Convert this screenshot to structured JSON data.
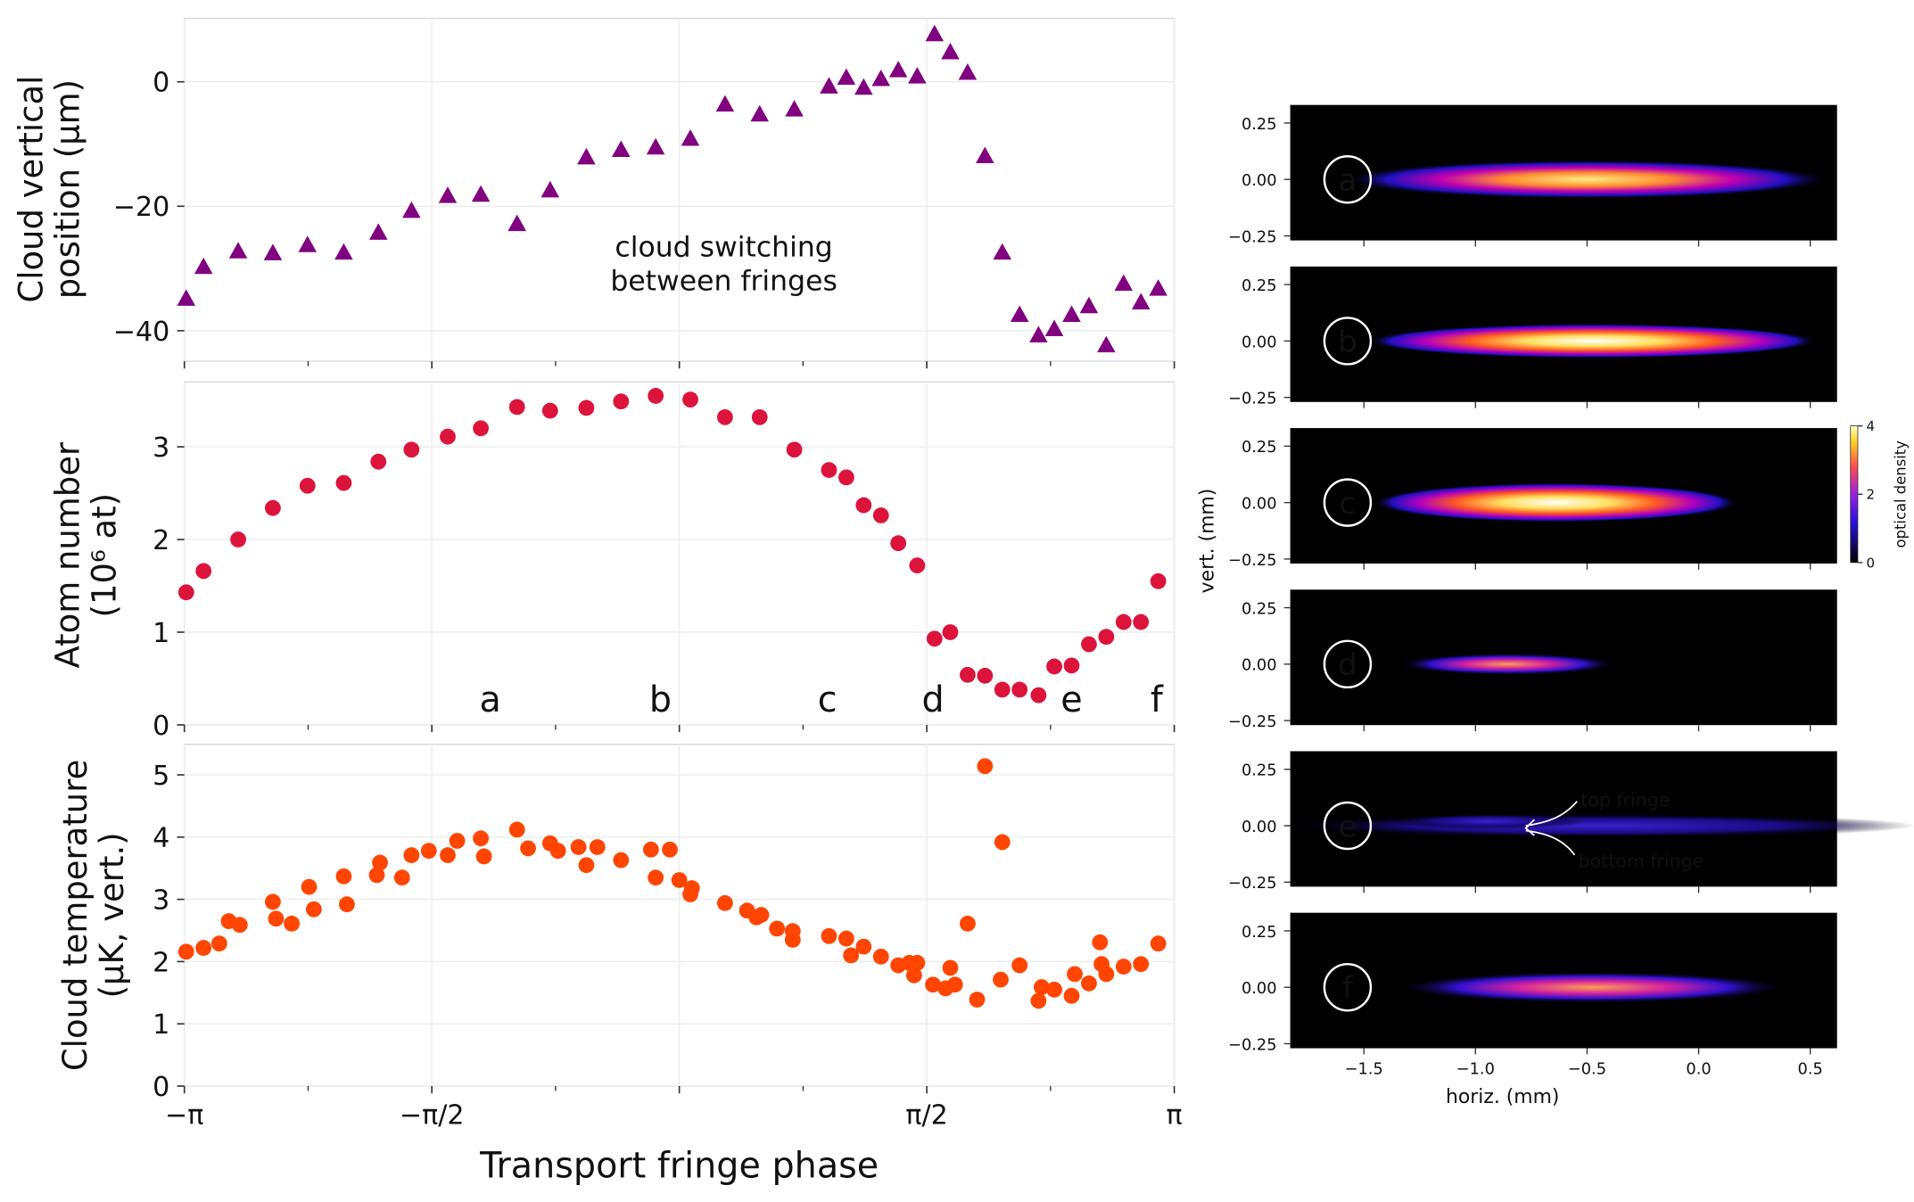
{
  "chart_data": [
    {
      "type": "scatter",
      "marker": "triangle",
      "color": "#800080",
      "ylabel": [
        "Cloud vertical",
        "position (μm)"
      ],
      "annotation": [
        "cloud switching",
        "between fringes"
      ],
      "x": [
        -3.13,
        -3.02,
        -2.8,
        -2.58,
        -2.36,
        -2.13,
        -1.91,
        -1.7,
        -1.47,
        -1.26,
        -1.03,
        -0.82,
        -0.59,
        -0.37,
        -0.15,
        0.07,
        0.29,
        0.51,
        0.73,
        0.95,
        1.06,
        1.17,
        1.28,
        1.39,
        1.51,
        1.62,
        1.72,
        1.83,
        1.94,
        2.05,
        2.16,
        2.28,
        2.38,
        2.49,
        2.6,
        2.71,
        2.82,
        2.93,
        3.04
      ],
      "values": [
        -34.9,
        -29.8,
        -27.3,
        -27.6,
        -26.3,
        -27.5,
        -24.3,
        -20.8,
        -18.4,
        -18.2,
        -22.9,
        -17.5,
        -12.2,
        -11.0,
        -10.6,
        -9.2,
        -3.7,
        -5.3,
        -4.5,
        -0.8,
        0.6,
        -1.0,
        0.4,
        1.8,
        0.8,
        7.6,
        4.7,
        1.4,
        -12.0,
        -27.5,
        -37.5,
        -40.8,
        -39.8,
        -37.5,
        -36.1,
        -42.4,
        -32.5,
        -35.5,
        -33.3
      ],
      "xlim": [
        -3.14159,
        3.14159
      ],
      "xticks": [
        -3.14159,
        -1.5708,
        0,
        1.5708,
        3.14159
      ],
      "ylim": [
        -44.9,
        10.2
      ],
      "yticks": [
        {
          "value": -40,
          "label": "−40"
        },
        {
          "value": -20,
          "label": "−20"
        },
        0
      ],
      "grid": true
    },
    {
      "type": "scatter",
      "marker": "circle",
      "color": "#dc143c",
      "ylabel": [
        "Atom number",
        "(10⁶ at)"
      ],
      "annotations": [
        {
          "text": "a",
          "x": -1.2
        },
        {
          "text": "b",
          "x": -0.12
        },
        {
          "text": "c",
          "x": 0.94
        },
        {
          "text": "d",
          "x": 1.61
        },
        {
          "text": "e",
          "x": 2.49
        },
        {
          "text": "f",
          "x": 3.03
        }
      ],
      "x": [
        -3.13,
        -3.02,
        -2.8,
        -2.58,
        -2.36,
        -2.13,
        -1.91,
        -1.7,
        -1.47,
        -1.26,
        -1.03,
        -0.82,
        -0.59,
        -0.37,
        -0.15,
        0.07,
        0.29,
        0.51,
        0.73,
        0.95,
        1.06,
        1.17,
        1.28,
        1.39,
        1.51,
        1.62,
        1.72,
        1.83,
        1.94,
        2.05,
        2.16,
        2.28,
        2.38,
        2.49,
        2.6,
        2.71,
        2.82,
        2.93,
        3.04
      ],
      "values": [
        1.43,
        1.66,
        2.0,
        2.34,
        2.58,
        2.61,
        2.84,
        2.97,
        3.11,
        3.2,
        3.43,
        3.39,
        3.42,
        3.49,
        3.55,
        3.51,
        3.32,
        3.32,
        2.97,
        2.75,
        2.67,
        2.37,
        2.26,
        1.96,
        1.72,
        0.93,
        1.0,
        0.54,
        0.53,
        0.38,
        0.38,
        0.32,
        0.63,
        0.64,
        0.87,
        0.95,
        1.11,
        1.11,
        1.55
      ],
      "xlim": [
        -3.14159,
        3.14159
      ],
      "xticks": [
        -3.14159,
        -1.5708,
        0,
        1.5708,
        3.14159
      ],
      "ylim": [
        0,
        3.7
      ],
      "yticks": [
        0,
        1,
        2,
        3
      ],
      "grid": true
    },
    {
      "type": "scatter",
      "marker": "circle",
      "color": "#ff4500",
      "ylabel": [
        "Cloud temperature",
        "(μK, vert.)"
      ],
      "xlabel": "Transport fringe phase",
      "x": [
        -3.13,
        -3.02,
        -2.92,
        -2.86,
        -2.79,
        -2.58,
        -2.56,
        -2.46,
        -2.35,
        -2.32,
        -2.13,
        -2.11,
        -1.92,
        -1.9,
        -1.76,
        -1.7,
        -1.59,
        -1.47,
        -1.41,
        -1.26,
        -1.24,
        -1.03,
        -0.96,
        -0.82,
        -0.77,
        -0.64,
        -0.59,
        -0.52,
        -0.37,
        -0.18,
        -0.15,
        -0.06,
        0.0,
        0.08,
        0.07,
        0.29,
        0.43,
        0.49,
        0.52,
        0.62,
        0.72,
        0.72,
        0.95,
        1.06,
        1.09,
        1.17,
        1.28,
        1.39,
        1.46,
        1.51,
        1.49,
        1.61,
        1.69,
        1.75,
        1.72,
        1.83,
        1.89,
        1.94,
        2.05,
        2.04,
        2.16,
        2.28,
        2.3,
        2.38,
        2.49,
        2.51,
        2.6,
        2.67,
        2.68,
        2.71,
        2.82,
        2.93,
        3.04
      ],
      "values": [
        2.16,
        2.22,
        2.29,
        2.65,
        2.59,
        2.96,
        2.69,
        2.61,
        3.2,
        2.84,
        3.37,
        2.92,
        3.39,
        3.59,
        3.35,
        3.71,
        3.78,
        3.71,
        3.94,
        3.98,
        3.69,
        4.12,
        3.82,
        3.9,
        3.78,
        3.84,
        3.55,
        3.84,
        3.63,
        3.8,
        3.35,
        3.8,
        3.31,
        3.18,
        3.08,
        2.94,
        2.82,
        2.71,
        2.75,
        2.53,
        2.49,
        2.35,
        2.41,
        2.37,
        2.1,
        2.24,
        2.08,
        1.94,
        1.98,
        1.98,
        1.78,
        1.63,
        1.57,
        1.63,
        1.9,
        2.61,
        1.39,
        5.14,
        3.92,
        1.71,
        1.94,
        1.37,
        1.59,
        1.55,
        1.45,
        1.8,
        1.65,
        2.31,
        1.96,
        1.8,
        1.92,
        1.96,
        2.29
      ],
      "xlim": [
        -3.14159,
        3.14159
      ],
      "xticks": [
        {
          "value": -3.14159,
          "label": "−π"
        },
        {
          "value": -1.5708,
          "label": "−π/2"
        },
        0,
        {
          "value": 1.5708,
          "label": "π/2"
        },
        {
          "value": 3.14159,
          "label": "π"
        }
      ],
      "ylim": [
        0,
        5.49
      ],
      "yticks": [
        0,
        1,
        2,
        3,
        4,
        5
      ],
      "grid": true
    }
  ],
  "image_panels": {
    "xlabel": "horiz. (mm)",
    "ylabel": "vert. (mm)",
    "xlim": [
      -1.83,
      0.62
    ],
    "ylim": [
      -0.27,
      0.33
    ],
    "xticks": [
      {
        "value": -1.5,
        "label": "−1.5"
      },
      {
        "value": -1.0,
        "label": "−1.0"
      },
      {
        "value": -0.5,
        "label": "−0.5"
      },
      {
        "value": 0.0,
        "label": "0.0"
      },
      0.5
    ],
    "yticks": [
      {
        "value": 0.25,
        "label": "0.25"
      },
      {
        "value": 0.0,
        "label": "0.00"
      },
      {
        "value": -0.25,
        "label": "−0.25"
      }
    ],
    "panels": [
      {
        "label": "a"
      },
      {
        "label": "b"
      },
      {
        "label": "c"
      },
      {
        "label": "d"
      },
      {
        "label": "e"
      },
      {
        "label": "f"
      }
    ],
    "annotations": [
      "top fringe",
      "bottom fringe"
    ],
    "colorbar": {
      "label": "optical density",
      "lim": [
        0,
        4
      ],
      "ticks": [
        0,
        2,
        4
      ]
    }
  }
}
